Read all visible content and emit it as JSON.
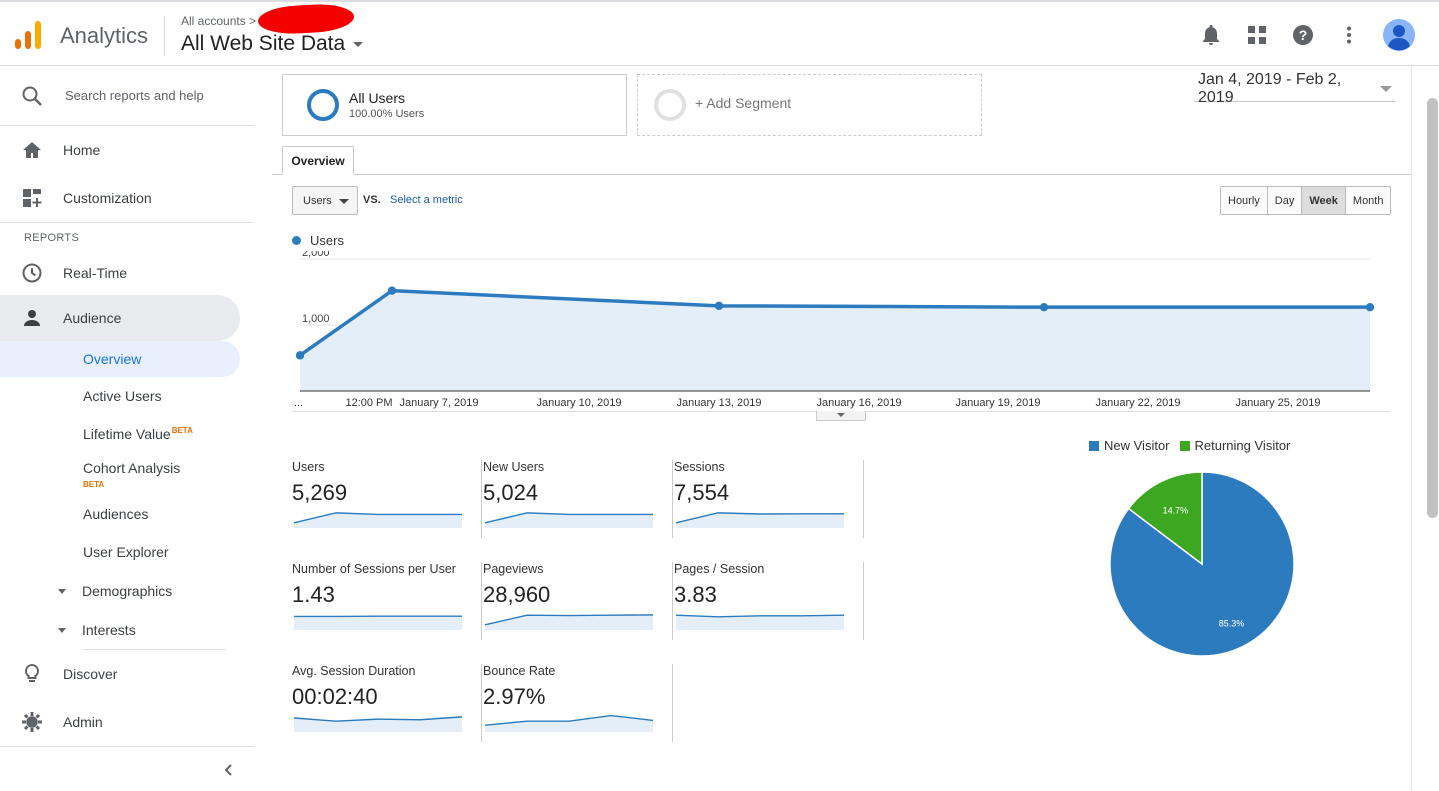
{
  "header": {
    "app_name": "Analytics",
    "breadcrumb": "All accounts",
    "property": "All Web Site Data"
  },
  "sidebar": {
    "search_placeholder": "Search reports and help",
    "home": "Home",
    "customization": "Customization",
    "reports_heading": "REPORTS",
    "realtime": "Real-Time",
    "audience": "Audience",
    "audience_sub": {
      "overview": "Overview",
      "active_users": "Active Users",
      "lifetime_value": "Lifetime Value",
      "cohort_analysis": "Cohort Analysis",
      "audiences": "Audiences",
      "user_explorer": "User Explorer",
      "demographics": "Demographics",
      "interests": "Interests"
    },
    "beta": "BETA",
    "discover": "Discover",
    "admin": "Admin"
  },
  "segments": {
    "all_users": "All Users",
    "all_users_pct": "100.00% Users",
    "add_segment": "+ Add Segment"
  },
  "date_range": "Jan 4, 2019 - Feb 2, 2019",
  "tab": "Overview",
  "controls": {
    "metric": "Users",
    "vs": "VS.",
    "select_metric": "Select a metric",
    "granularity": [
      "Hourly",
      "Day",
      "Week",
      "Month"
    ],
    "granularity_selected": "Week"
  },
  "colors": {
    "primary": "#2c7bbf",
    "fill": "#e3eef8",
    "returning": "#3da721"
  },
  "chart_data": {
    "type": "area",
    "series": [
      {
        "name": "Users",
        "x_index": [
          0,
          1,
          2,
          3,
          4
        ],
        "values": [
          540,
          1520,
          1290,
          1270,
          1270
        ]
      }
    ],
    "ylim": [
      0,
      2000
    ],
    "yticks": [
      {
        "value": 1000,
        "label": "1,000"
      },
      {
        "value": 2000,
        "label": "2,000"
      }
    ],
    "xtick_labels": [
      "...",
      "12:00 PM",
      "January 7, 2019",
      "January 10, 2019",
      "January 13, 2019",
      "January 16, 2019",
      "January 19, 2019",
      "January 22, 2019",
      "January 25, 2019"
    ]
  },
  "scorecards": [
    {
      "name": "Users",
      "value": "5,269",
      "trend": [
        0.2,
        0.82,
        0.72,
        0.72,
        0.72
      ]
    },
    {
      "name": "New Users",
      "value": "5,024",
      "trend": [
        0.2,
        0.82,
        0.72,
        0.72,
        0.72
      ]
    },
    {
      "name": "Sessions",
      "value": "7,554",
      "trend": [
        0.2,
        0.82,
        0.75,
        0.76,
        0.76
      ]
    },
    {
      "name": "Number of Sessions per User",
      "value": "1.43",
      "trend": [
        0.72,
        0.72,
        0.74,
        0.74,
        0.74
      ]
    },
    {
      "name": "Pageviews",
      "value": "28,960",
      "trend": [
        0.2,
        0.8,
        0.78,
        0.8,
        0.82
      ]
    },
    {
      "name": "Pages / Session",
      "value": "3.83",
      "trend": [
        0.8,
        0.7,
        0.76,
        0.76,
        0.8
      ]
    },
    {
      "name": "Avg. Session Duration",
      "value": "00:02:40",
      "trend": [
        0.75,
        0.55,
        0.68,
        0.64,
        0.82
      ]
    },
    {
      "name": "Bounce Rate",
      "value": "2.97%",
      "trend": [
        0.3,
        0.55,
        0.55,
        0.9,
        0.6
      ]
    }
  ],
  "pie": {
    "legend": [
      "New Visitor",
      "Returning Visitor"
    ],
    "values": [
      85.3,
      14.7
    ],
    "labels": [
      "85.3%",
      "14.7%"
    ]
  }
}
